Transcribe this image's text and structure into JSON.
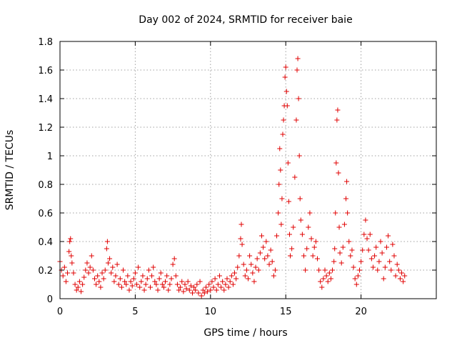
{
  "chart_data": {
    "type": "scatter",
    "title": "Day 002 of 2024, SRMTID for receiver baie",
    "xlabel": "GPS time / hours",
    "ylabel": "SRMTID / TECUs",
    "xlim": [
      0,
      25
    ],
    "ylim": [
      0,
      1.8
    ],
    "xticks": [
      0,
      5,
      10,
      15,
      20
    ],
    "xtick_labels": [
      "0",
      "5",
      "10",
      "15",
      "20"
    ],
    "yticks": [
      0,
      0.2,
      0.4,
      0.6,
      0.8,
      1.0,
      1.2,
      1.4,
      1.6,
      1.8
    ],
    "ytick_labels": [
      "0",
      "0.2",
      "0.4",
      "0.6",
      "0.8",
      "1",
      "1.2",
      "1.4",
      "1.6",
      "1.8"
    ],
    "grid": true,
    "marker": "+",
    "color": "#e00000",
    "series": [
      {
        "name": "SRMTID",
        "points": [
          [
            0.0,
            0.26
          ],
          [
            0.1,
            0.2
          ],
          [
            0.2,
            0.16
          ],
          [
            0.3,
            0.22
          ],
          [
            0.4,
            0.12
          ],
          [
            0.5,
            0.18
          ],
          [
            0.6,
            0.33
          ],
          [
            0.65,
            0.4
          ],
          [
            0.7,
            0.42
          ],
          [
            0.75,
            0.3
          ],
          [
            0.8,
            0.25
          ],
          [
            0.9,
            0.18
          ],
          [
            1.0,
            0.1
          ],
          [
            1.1,
            0.06
          ],
          [
            1.2,
            0.08
          ],
          [
            1.3,
            0.12
          ],
          [
            1.4,
            0.05
          ],
          [
            1.5,
            0.1
          ],
          [
            1.6,
            0.15
          ],
          [
            1.7,
            0.2
          ],
          [
            1.8,
            0.25
          ],
          [
            1.9,
            0.18
          ],
          [
            2.0,
            0.22
          ],
          [
            2.1,
            0.3
          ],
          [
            2.2,
            0.2
          ],
          [
            2.3,
            0.14
          ],
          [
            2.4,
            0.1
          ],
          [
            2.5,
            0.16
          ],
          [
            2.6,
            0.12
          ],
          [
            2.7,
            0.08
          ],
          [
            2.8,
            0.18
          ],
          [
            2.9,
            0.14
          ],
          [
            3.0,
            0.2
          ],
          [
            3.1,
            0.35
          ],
          [
            3.15,
            0.4
          ],
          [
            3.2,
            0.25
          ],
          [
            3.3,
            0.28
          ],
          [
            3.4,
            0.18
          ],
          [
            3.5,
            0.22
          ],
          [
            3.6,
            0.12
          ],
          [
            3.7,
            0.16
          ],
          [
            3.8,
            0.24
          ],
          [
            3.9,
            0.1
          ],
          [
            4.0,
            0.14
          ],
          [
            4.1,
            0.08
          ],
          [
            4.2,
            0.2
          ],
          [
            4.3,
            0.12
          ],
          [
            4.4,
            0.1
          ],
          [
            4.5,
            0.16
          ],
          [
            4.6,
            0.06
          ],
          [
            4.7,
            0.12
          ],
          [
            4.8,
            0.09
          ],
          [
            4.9,
            0.14
          ],
          [
            5.0,
            0.18
          ],
          [
            5.1,
            0.1
          ],
          [
            5.2,
            0.22
          ],
          [
            5.3,
            0.08
          ],
          [
            5.4,
            0.12
          ],
          [
            5.5,
            0.16
          ],
          [
            5.6,
            0.06
          ],
          [
            5.7,
            0.1
          ],
          [
            5.8,
            0.14
          ],
          [
            5.9,
            0.2
          ],
          [
            6.0,
            0.08
          ],
          [
            6.1,
            0.16
          ],
          [
            6.2,
            0.22
          ],
          [
            6.3,
            0.12
          ],
          [
            6.4,
            0.1
          ],
          [
            6.5,
            0.06
          ],
          [
            6.6,
            0.14
          ],
          [
            6.7,
            0.18
          ],
          [
            6.8,
            0.1
          ],
          [
            6.9,
            0.08
          ],
          [
            7.0,
            0.12
          ],
          [
            7.1,
            0.16
          ],
          [
            7.2,
            0.06
          ],
          [
            7.3,
            0.1
          ],
          [
            7.4,
            0.14
          ],
          [
            7.5,
            0.24
          ],
          [
            7.6,
            0.28
          ],
          [
            7.7,
            0.16
          ],
          [
            7.8,
            0.1
          ],
          [
            7.9,
            0.06
          ],
          [
            8.0,
            0.08
          ],
          [
            8.1,
            0.12
          ],
          [
            8.2,
            0.05
          ],
          [
            8.3,
            0.1
          ],
          [
            8.4,
            0.07
          ],
          [
            8.5,
            0.12
          ],
          [
            8.6,
            0.06
          ],
          [
            8.7,
            0.09
          ],
          [
            8.8,
            0.04
          ],
          [
            8.9,
            0.08
          ],
          [
            9.0,
            0.06
          ],
          [
            9.1,
            0.1
          ],
          [
            9.2,
            0.04
          ],
          [
            9.3,
            0.12
          ],
          [
            9.4,
            0.02
          ],
          [
            9.5,
            0.06
          ],
          [
            9.6,
            0.04
          ],
          [
            9.7,
            0.08
          ],
          [
            9.8,
            0.05
          ],
          [
            9.9,
            0.1
          ],
          [
            10.0,
            0.06
          ],
          [
            10.1,
            0.12
          ],
          [
            10.2,
            0.08
          ],
          [
            10.3,
            0.14
          ],
          [
            10.4,
            0.06
          ],
          [
            10.5,
            0.1
          ],
          [
            10.6,
            0.16
          ],
          [
            10.7,
            0.08
          ],
          [
            10.8,
            0.12
          ],
          [
            10.9,
            0.06
          ],
          [
            11.0,
            0.1
          ],
          [
            11.1,
            0.14
          ],
          [
            11.2,
            0.08
          ],
          [
            11.3,
            0.12
          ],
          [
            11.4,
            0.16
          ],
          [
            11.5,
            0.1
          ],
          [
            11.6,
            0.18
          ],
          [
            11.7,
            0.14
          ],
          [
            11.8,
            0.22
          ],
          [
            11.9,
            0.3
          ],
          [
            12.0,
            0.42
          ],
          [
            12.05,
            0.52
          ],
          [
            12.1,
            0.38
          ],
          [
            12.2,
            0.24
          ],
          [
            12.3,
            0.16
          ],
          [
            12.4,
            0.2
          ],
          [
            12.5,
            0.14
          ],
          [
            12.6,
            0.3
          ],
          [
            12.7,
            0.24
          ],
          [
            12.8,
            0.18
          ],
          [
            12.9,
            0.12
          ],
          [
            13.0,
            0.22
          ],
          [
            13.1,
            0.28
          ],
          [
            13.2,
            0.2
          ],
          [
            13.3,
            0.32
          ],
          [
            13.4,
            0.44
          ],
          [
            13.5,
            0.36
          ],
          [
            13.6,
            0.28
          ],
          [
            13.7,
            0.4
          ],
          [
            13.8,
            0.3
          ],
          [
            13.9,
            0.24
          ],
          [
            14.0,
            0.34
          ],
          [
            14.1,
            0.26
          ],
          [
            14.2,
            0.16
          ],
          [
            14.3,
            0.2
          ],
          [
            14.4,
            0.44
          ],
          [
            14.5,
            0.6
          ],
          [
            14.55,
            0.8
          ],
          [
            14.6,
            1.05
          ],
          [
            14.65,
            0.9
          ],
          [
            14.7,
            0.52
          ],
          [
            14.75,
            0.7
          ],
          [
            14.8,
            1.15
          ],
          [
            14.85,
            1.25
          ],
          [
            14.9,
            1.35
          ],
          [
            14.95,
            1.55
          ],
          [
            15.0,
            1.62
          ],
          [
            15.05,
            1.45
          ],
          [
            15.1,
            1.35
          ],
          [
            15.15,
            0.95
          ],
          [
            15.2,
            0.68
          ],
          [
            15.25,
            0.45
          ],
          [
            15.3,
            0.3
          ],
          [
            15.4,
            0.35
          ],
          [
            15.5,
            0.5
          ],
          [
            15.6,
            0.85
          ],
          [
            15.7,
            1.25
          ],
          [
            15.75,
            1.6
          ],
          [
            15.8,
            1.68
          ],
          [
            15.85,
            1.4
          ],
          [
            15.9,
            1.0
          ],
          [
            15.95,
            0.7
          ],
          [
            16.0,
            0.55
          ],
          [
            16.1,
            0.45
          ],
          [
            16.2,
            0.3
          ],
          [
            16.3,
            0.2
          ],
          [
            16.4,
            0.35
          ],
          [
            16.5,
            0.5
          ],
          [
            16.6,
            0.6
          ],
          [
            16.7,
            0.42
          ],
          [
            16.8,
            0.3
          ],
          [
            16.9,
            0.36
          ],
          [
            17.0,
            0.4
          ],
          [
            17.1,
            0.28
          ],
          [
            17.2,
            0.2
          ],
          [
            17.3,
            0.12
          ],
          [
            17.4,
            0.08
          ],
          [
            17.5,
            0.14
          ],
          [
            17.6,
            0.2
          ],
          [
            17.7,
            0.16
          ],
          [
            17.8,
            0.12
          ],
          [
            17.9,
            0.18
          ],
          [
            18.0,
            0.14
          ],
          [
            18.1,
            0.2
          ],
          [
            18.2,
            0.26
          ],
          [
            18.25,
            0.35
          ],
          [
            18.3,
            0.6
          ],
          [
            18.35,
            0.95
          ],
          [
            18.4,
            1.25
          ],
          [
            18.45,
            1.32
          ],
          [
            18.5,
            0.88
          ],
          [
            18.55,
            0.5
          ],
          [
            18.6,
            0.32
          ],
          [
            18.7,
            0.25
          ],
          [
            18.8,
            0.36
          ],
          [
            18.9,
            0.52
          ],
          [
            19.0,
            0.7
          ],
          [
            19.05,
            0.82
          ],
          [
            19.1,
            0.6
          ],
          [
            19.2,
            0.4
          ],
          [
            19.3,
            0.3
          ],
          [
            19.4,
            0.34
          ],
          [
            19.5,
            0.22
          ],
          [
            19.6,
            0.14
          ],
          [
            19.7,
            0.1
          ],
          [
            19.8,
            0.16
          ],
          [
            19.9,
            0.2
          ],
          [
            20.0,
            0.26
          ],
          [
            20.1,
            0.34
          ],
          [
            20.2,
            0.45
          ],
          [
            20.3,
            0.55
          ],
          [
            20.4,
            0.42
          ],
          [
            20.5,
            0.34
          ],
          [
            20.6,
            0.45
          ],
          [
            20.7,
            0.28
          ],
          [
            20.8,
            0.22
          ],
          [
            20.9,
            0.3
          ],
          [
            21.0,
            0.36
          ],
          [
            21.1,
            0.2
          ],
          [
            21.2,
            0.26
          ],
          [
            21.3,
            0.4
          ],
          [
            21.4,
            0.32
          ],
          [
            21.5,
            0.14
          ],
          [
            21.6,
            0.22
          ],
          [
            21.7,
            0.36
          ],
          [
            21.8,
            0.44
          ],
          [
            21.9,
            0.26
          ],
          [
            22.0,
            0.2
          ],
          [
            22.1,
            0.38
          ],
          [
            22.2,
            0.3
          ],
          [
            22.3,
            0.16
          ],
          [
            22.4,
            0.24
          ],
          [
            22.5,
            0.2
          ],
          [
            22.6,
            0.14
          ],
          [
            22.7,
            0.18
          ],
          [
            22.8,
            0.12
          ],
          [
            22.9,
            0.16
          ]
        ]
      }
    ]
  }
}
